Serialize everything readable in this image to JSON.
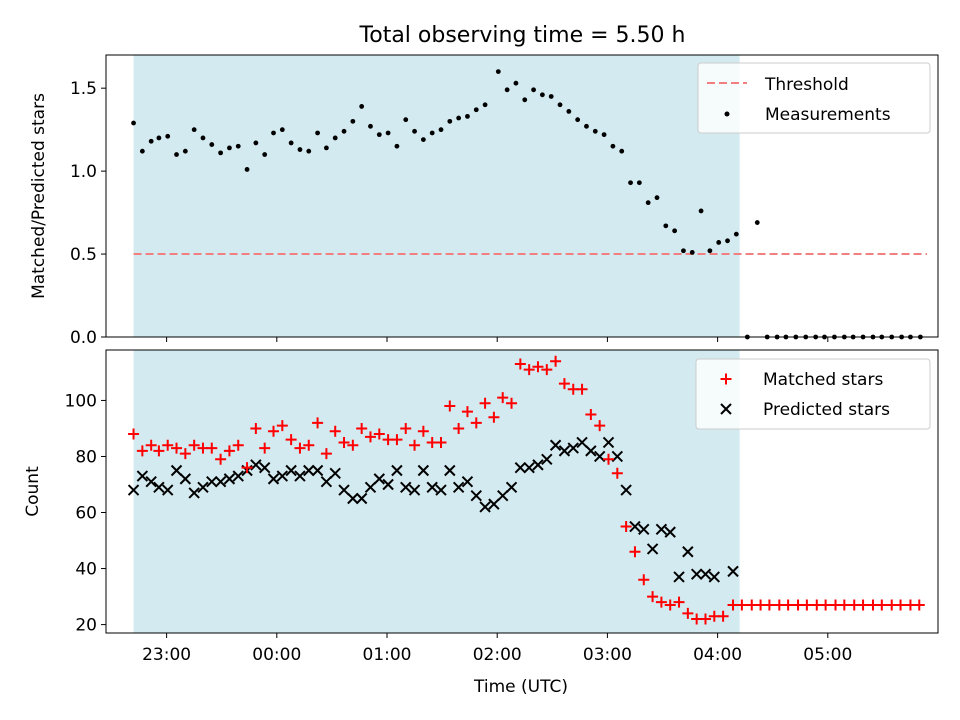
{
  "chart_data": [
    {
      "type": "scatter",
      "title": "Total observing time = 5.50 h",
      "xlabel": "",
      "ylabel": "Matched/Predicted stars",
      "x_unit": "time_utc_hours",
      "xlim": [
        22.45,
        30.0
      ],
      "ylim": [
        0.0,
        1.7
      ],
      "yticks": [
        0.0,
        0.5,
        1.0,
        1.5
      ],
      "ytick_labels": [
        "0.0",
        "0.5",
        "1.0",
        "1.5"
      ],
      "x_shaded_range": [
        22.7,
        28.2
      ],
      "shade_color": "#d3eaf0",
      "legend_position": "upper right",
      "threshold": {
        "name": "Threshold",
        "y": 0.5,
        "x_range": [
          22.7,
          29.9
        ],
        "color": "#f08080",
        "style": "dashed"
      },
      "series": [
        {
          "name": "Measurements",
          "color": "#000000",
          "marker": "dot",
          "points": [
            [
              22.7,
              1.29
            ],
            [
              22.78,
              1.12
            ],
            [
              22.86,
              1.18
            ],
            [
              22.93,
              1.2
            ],
            [
              23.01,
              1.21
            ],
            [
              23.09,
              1.1
            ],
            [
              23.17,
              1.12
            ],
            [
              23.25,
              1.25
            ],
            [
              23.33,
              1.2
            ],
            [
              23.41,
              1.16
            ],
            [
              23.49,
              1.11
            ],
            [
              23.57,
              1.14
            ],
            [
              23.65,
              1.15
            ],
            [
              23.73,
              1.01
            ],
            [
              23.81,
              1.17
            ],
            [
              23.89,
              1.1
            ],
            [
              23.97,
              1.23
            ],
            [
              24.05,
              1.25
            ],
            [
              24.13,
              1.17
            ],
            [
              24.21,
              1.13
            ],
            [
              24.29,
              1.12
            ],
            [
              24.37,
              1.23
            ],
            [
              24.45,
              1.14
            ],
            [
              24.53,
              1.2
            ],
            [
              24.61,
              1.24
            ],
            [
              24.69,
              1.3
            ],
            [
              24.77,
              1.39
            ],
            [
              24.85,
              1.27
            ],
            [
              24.93,
              1.22
            ],
            [
              25.01,
              1.23
            ],
            [
              25.09,
              1.15
            ],
            [
              25.17,
              1.31
            ],
            [
              25.25,
              1.24
            ],
            [
              25.33,
              1.19
            ],
            [
              25.41,
              1.23
            ],
            [
              25.49,
              1.25
            ],
            [
              25.57,
              1.3
            ],
            [
              25.65,
              1.32
            ],
            [
              25.73,
              1.33
            ],
            [
              25.81,
              1.37
            ],
            [
              25.89,
              1.4
            ],
            [
              26.01,
              1.6
            ],
            [
              26.09,
              1.49
            ],
            [
              26.17,
              1.53
            ],
            [
              26.25,
              1.43
            ],
            [
              26.33,
              1.49
            ],
            [
              26.41,
              1.46
            ],
            [
              26.49,
              1.45
            ],
            [
              26.57,
              1.4
            ],
            [
              26.65,
              1.36
            ],
            [
              26.73,
              1.31
            ],
            [
              26.81,
              1.27
            ],
            [
              26.89,
              1.24
            ],
            [
              26.97,
              1.22
            ],
            [
              27.05,
              1.15
            ],
            [
              27.13,
              1.12
            ],
            [
              27.21,
              0.93
            ],
            [
              27.29,
              0.93
            ],
            [
              27.37,
              0.81
            ],
            [
              27.45,
              0.84
            ],
            [
              27.53,
              0.67
            ],
            [
              27.61,
              0.64
            ],
            [
              27.69,
              0.52
            ],
            [
              27.77,
              0.51
            ],
            [
              27.85,
              0.76
            ],
            [
              27.93,
              0.52
            ],
            [
              28.01,
              0.57
            ],
            [
              28.09,
              0.58
            ],
            [
              28.17,
              0.62
            ],
            [
              28.27,
              0.0
            ],
            [
              28.36,
              0.69
            ],
            [
              28.45,
              0.0
            ],
            [
              28.54,
              0.0
            ],
            [
              28.62,
              0.0
            ],
            [
              28.71,
              0.0
            ],
            [
              28.8,
              0.0
            ],
            [
              28.89,
              0.0
            ],
            [
              28.97,
              0.0
            ],
            [
              29.06,
              0.0
            ],
            [
              29.15,
              0.0
            ],
            [
              29.23,
              0.0
            ],
            [
              29.32,
              0.0
            ],
            [
              29.41,
              0.0
            ],
            [
              29.49,
              0.0
            ],
            [
              29.58,
              0.0
            ],
            [
              29.67,
              0.0
            ],
            [
              29.75,
              0.0
            ],
            [
              29.84,
              0.0
            ]
          ]
        }
      ]
    },
    {
      "type": "scatter",
      "title": "",
      "xlabel": "Time (UTC)",
      "ylabel": "Count",
      "x_unit": "time_utc_hours",
      "xlim": [
        22.45,
        30.0
      ],
      "ylim": [
        17,
        118
      ],
      "yticks": [
        20,
        40,
        60,
        80,
        100
      ],
      "ytick_labels": [
        "20",
        "40",
        "60",
        "80",
        "100"
      ],
      "xticks": [
        23,
        24,
        25,
        26,
        27,
        28,
        29
      ],
      "xtick_labels": [
        "23:00",
        "00:00",
        "01:00",
        "02:00",
        "03:00",
        "04:00",
        "05:00"
      ],
      "x_shaded_range": [
        22.7,
        28.2
      ],
      "shade_color": "#d3eaf0",
      "legend_position": "upper right",
      "series": [
        {
          "name": "Matched stars",
          "color": "#ff0000",
          "marker": "plus",
          "points": [
            [
              22.7,
              88
            ],
            [
              22.78,
              82
            ],
            [
              22.86,
              84
            ],
            [
              22.93,
              82
            ],
            [
              23.01,
              84
            ],
            [
              23.09,
              83
            ],
            [
              23.17,
              81
            ],
            [
              23.25,
              84
            ],
            [
              23.33,
              83
            ],
            [
              23.41,
              83
            ],
            [
              23.49,
              79
            ],
            [
              23.57,
              82
            ],
            [
              23.65,
              84
            ],
            [
              23.73,
              76
            ],
            [
              23.81,
              90
            ],
            [
              23.89,
              83
            ],
            [
              23.97,
              89
            ],
            [
              24.05,
              91
            ],
            [
              24.13,
              86
            ],
            [
              24.21,
              83
            ],
            [
              24.29,
              84
            ],
            [
              24.37,
              92
            ],
            [
              24.45,
              81
            ],
            [
              24.53,
              89
            ],
            [
              24.61,
              85
            ],
            [
              24.69,
              84
            ],
            [
              24.77,
              90
            ],
            [
              24.85,
              87
            ],
            [
              24.93,
              88
            ],
            [
              25.01,
              86
            ],
            [
              25.09,
              86
            ],
            [
              25.17,
              90
            ],
            [
              25.25,
              84
            ],
            [
              25.33,
              89
            ],
            [
              25.41,
              85
            ],
            [
              25.49,
              85
            ],
            [
              25.57,
              98
            ],
            [
              25.65,
              90
            ],
            [
              25.73,
              96
            ],
            [
              25.81,
              92
            ],
            [
              25.89,
              99
            ],
            [
              25.97,
              94
            ],
            [
              26.05,
              101
            ],
            [
              26.13,
              99
            ],
            [
              26.21,
              113
            ],
            [
              26.29,
              111
            ],
            [
              26.37,
              112
            ],
            [
              26.45,
              111
            ],
            [
              26.53,
              114
            ],
            [
              26.61,
              106
            ],
            [
              26.69,
              104
            ],
            [
              26.77,
              104
            ],
            [
              26.85,
              95
            ],
            [
              26.93,
              91
            ],
            [
              27.01,
              79
            ],
            [
              27.09,
              74
            ],
            [
              27.17,
              55
            ],
            [
              27.25,
              46
            ],
            [
              27.33,
              36
            ],
            [
              27.41,
              30
            ],
            [
              27.49,
              28
            ],
            [
              27.57,
              27
            ],
            [
              27.65,
              28
            ],
            [
              27.73,
              24
            ],
            [
              27.81,
              22
            ],
            [
              27.89,
              22
            ],
            [
              27.97,
              23
            ],
            [
              28.05,
              23
            ],
            [
              28.14,
              27
            ],
            [
              28.22,
              27
            ],
            [
              28.31,
              27
            ],
            [
              28.39,
              27
            ],
            [
              28.47,
              27
            ],
            [
              28.56,
              27
            ],
            [
              28.64,
              27
            ],
            [
              28.73,
              27
            ],
            [
              28.81,
              27
            ],
            [
              28.9,
              27
            ],
            [
              28.98,
              27
            ],
            [
              29.07,
              27
            ],
            [
              29.15,
              27
            ],
            [
              29.24,
              27
            ],
            [
              29.32,
              27
            ],
            [
              29.41,
              27
            ],
            [
              29.49,
              27
            ],
            [
              29.58,
              27
            ],
            [
              29.66,
              27
            ],
            [
              29.75,
              27
            ],
            [
              29.83,
              27
            ]
          ]
        },
        {
          "name": "Predicted stars",
          "color": "#000000",
          "marker": "x",
          "points": [
            [
              22.7,
              68
            ],
            [
              22.78,
              73
            ],
            [
              22.86,
              71
            ],
            [
              22.93,
              69
            ],
            [
              23.01,
              68
            ],
            [
              23.09,
              75
            ],
            [
              23.17,
              72
            ],
            [
              23.25,
              67
            ],
            [
              23.33,
              69
            ],
            [
              23.41,
              71
            ],
            [
              23.49,
              71
            ],
            [
              23.57,
              72
            ],
            [
              23.65,
              73
            ],
            [
              23.73,
              75
            ],
            [
              23.81,
              77
            ],
            [
              23.89,
              76
            ],
            [
              23.97,
              72
            ],
            [
              24.05,
              73
            ],
            [
              24.13,
              75
            ],
            [
              24.21,
              73
            ],
            [
              24.29,
              75
            ],
            [
              24.37,
              75
            ],
            [
              24.45,
              71
            ],
            [
              24.53,
              74
            ],
            [
              24.61,
              68
            ],
            [
              24.69,
              65
            ],
            [
              24.77,
              65
            ],
            [
              24.85,
              69
            ],
            [
              24.93,
              72
            ],
            [
              25.01,
              70
            ],
            [
              25.09,
              75
            ],
            [
              25.17,
              69
            ],
            [
              25.25,
              68
            ],
            [
              25.33,
              75
            ],
            [
              25.41,
              69
            ],
            [
              25.49,
              68
            ],
            [
              25.57,
              75
            ],
            [
              25.65,
              69
            ],
            [
              25.73,
              71
            ],
            [
              25.81,
              66
            ],
            [
              25.89,
              62
            ],
            [
              25.97,
              63
            ],
            [
              26.05,
              66
            ],
            [
              26.13,
              69
            ],
            [
              26.21,
              76
            ],
            [
              26.29,
              76
            ],
            [
              26.37,
              77
            ],
            [
              26.45,
              79
            ],
            [
              26.53,
              84
            ],
            [
              26.61,
              82
            ],
            [
              26.69,
              83
            ],
            [
              26.77,
              85
            ],
            [
              26.85,
              82
            ],
            [
              26.93,
              80
            ],
            [
              27.01,
              85
            ],
            [
              27.09,
              80
            ],
            [
              27.17,
              68
            ],
            [
              27.25,
              55
            ],
            [
              27.33,
              54
            ],
            [
              27.41,
              47
            ],
            [
              27.49,
              54
            ],
            [
              27.57,
              53
            ],
            [
              27.65,
              37
            ],
            [
              27.73,
              46
            ],
            [
              27.81,
              38
            ],
            [
              27.89,
              38
            ],
            [
              27.97,
              37
            ],
            [
              28.14,
              39
            ]
          ]
        }
      ]
    }
  ]
}
